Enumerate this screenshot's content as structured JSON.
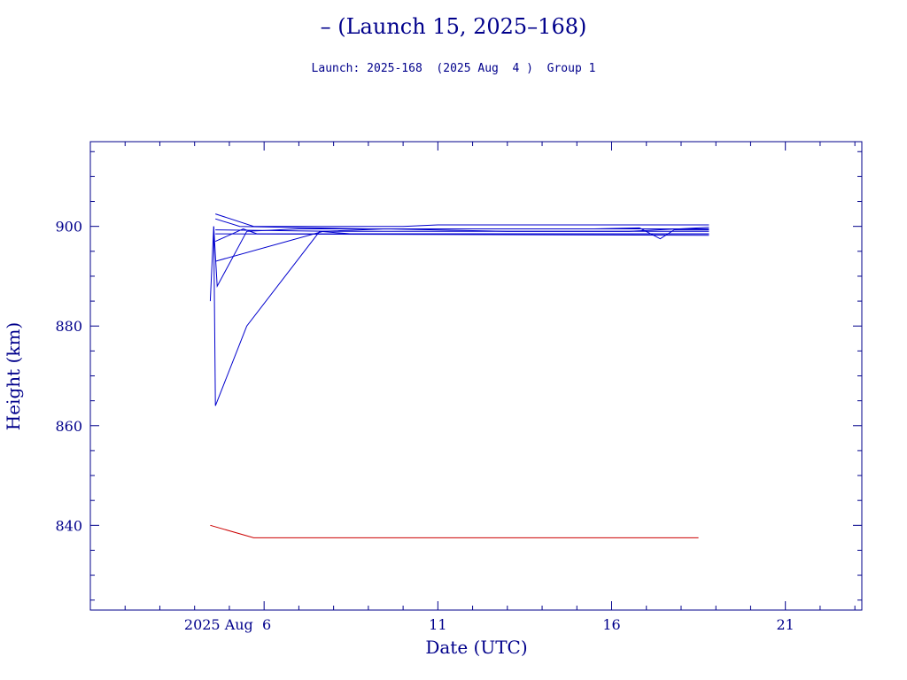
{
  "chart_data": {
    "type": "line",
    "title": "– (Launch 15, 2025–168)",
    "subtitle": "Launch: 2025-168  (2025 Aug  4 )  Group 1",
    "xlabel": "Date (UTC)",
    "ylabel": "Height (km)",
    "xlim": [
      1.0,
      23.2
    ],
    "ylim": [
      823,
      917
    ],
    "x_ticks": [
      {
        "value": 6,
        "label": "2025 Aug  6"
      },
      {
        "value": 11,
        "label": "11"
      },
      {
        "value": 16,
        "label": "16"
      },
      {
        "value": 21,
        "label": "21"
      }
    ],
    "y_ticks": [
      {
        "value": 840,
        "label": "840"
      },
      {
        "value": 860,
        "label": "860"
      },
      {
        "value": 880,
        "label": "880"
      },
      {
        "value": 900,
        "label": "900"
      }
    ],
    "grid": false,
    "series": [
      {
        "color": "#0000cd",
        "points": [
          [
            4.45,
            885
          ],
          [
            4.55,
            900
          ],
          [
            4.6,
            864
          ],
          [
            5.5,
            880
          ],
          [
            7.6,
            899
          ],
          [
            8.5,
            898.5
          ],
          [
            18.8,
            898.5
          ]
        ]
      },
      {
        "color": "#0000cd",
        "points": [
          [
            4.55,
            900
          ],
          [
            4.65,
            888
          ],
          [
            5.5,
            899
          ],
          [
            7.0,
            899.5
          ],
          [
            10.5,
            899.5
          ],
          [
            18.8,
            899.5
          ]
        ]
      },
      {
        "color": "#0000cd",
        "points": [
          [
            4.6,
            893
          ],
          [
            7.7,
            899
          ],
          [
            9.5,
            899.5
          ],
          [
            13.0,
            899
          ],
          [
            18.8,
            899
          ]
        ]
      },
      {
        "color": "#0000cd",
        "points": [
          [
            4.6,
            897
          ],
          [
            5.4,
            899.5
          ],
          [
            5.8,
            898.5
          ],
          [
            10.0,
            898.5
          ],
          [
            18.8,
            898.5
          ]
        ]
      },
      {
        "color": "#0000cd",
        "points": [
          [
            4.6,
            902.5
          ],
          [
            5.7,
            900
          ],
          [
            10.0,
            900
          ],
          [
            11.0,
            900.3
          ],
          [
            18.8,
            900.3
          ]
        ]
      },
      {
        "color": "#0000cd",
        "points": [
          [
            4.6,
            901.5
          ],
          [
            5.3,
            900
          ],
          [
            9.0,
            899.5
          ],
          [
            15.5,
            899.5
          ],
          [
            16.8,
            899.7
          ],
          [
            17.4,
            897.5
          ],
          [
            17.8,
            899.3
          ],
          [
            18.8,
            899.3
          ]
        ]
      },
      {
        "color": "#0000cd",
        "points": [
          [
            4.6,
            899.3
          ],
          [
            8.0,
            899
          ],
          [
            16.5,
            899
          ],
          [
            18.8,
            899.8
          ]
        ]
      },
      {
        "color": "#0000cd",
        "points": [
          [
            4.6,
            898.5
          ],
          [
            18.8,
            898.2
          ]
        ]
      },
      {
        "color": "#cc0000",
        "points": [
          [
            4.45,
            840
          ],
          [
            5.7,
            837.5
          ],
          [
            18.5,
            837.5
          ]
        ]
      }
    ]
  }
}
